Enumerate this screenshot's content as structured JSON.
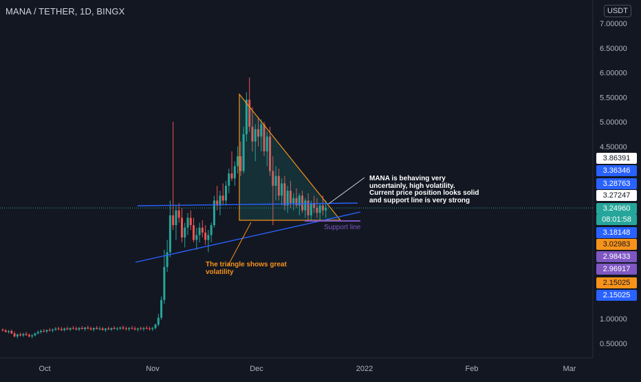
{
  "header": {
    "symbol": "MANA / TETHER, 1D, BINGX",
    "currency": "USDT"
  },
  "colors": {
    "background": "#131722",
    "up": "#26a69a",
    "down": "#ef5350",
    "triangle": "#f7931a",
    "trendline": "#2962ff",
    "support": "#7e57c2",
    "white_label": "#ffffff"
  },
  "annotations": {
    "main_lines": [
      "MANA is behaving very",
      "uncertainly, high volatility.",
      "Current price position looks solid",
      "and support line is very strong"
    ],
    "triangle_lines": [
      "The triangle shows great",
      "volatility"
    ],
    "support_label": "Support line"
  },
  "price_labels": [
    {
      "text": "3.86391",
      "bg": "#ffffff",
      "fg": "#131722"
    },
    {
      "text": "3.36346",
      "bg": "#2962ff",
      "fg": "#ffffff"
    },
    {
      "text": "3.28763",
      "bg": "#2962ff",
      "fg": "#ffffff"
    },
    {
      "text": "3.27247",
      "bg": "#ffffff",
      "fg": "#131722"
    },
    {
      "text": "3.24960",
      "bg": "#26a69a",
      "fg": "#ffffff"
    },
    {
      "text": "08:01:58",
      "bg": "#26a69a",
      "fg": "#ffffff"
    },
    {
      "text": "3.18148",
      "bg": "#2962ff",
      "fg": "#ffffff"
    },
    {
      "text": "3.02983",
      "bg": "#f7931a",
      "fg": "#131722"
    },
    {
      "text": "2.98433",
      "bg": "#7e57c2",
      "fg": "#ffffff"
    },
    {
      "text": "2.96917",
      "bg": "#7e57c2",
      "fg": "#ffffff"
    },
    {
      "text": "2.15025",
      "bg": "#f7931a",
      "fg": "#131722"
    },
    {
      "text": "2.15025",
      "bg": "#2962ff",
      "fg": "#ffffff"
    }
  ],
  "chart_data": {
    "type": "candlestick",
    "title": "MANA / TETHER, 1D, BINGX",
    "y_ticks": [
      "7.00000",
      "6.50000",
      "6.00000",
      "5.50000",
      "5.00000",
      "4.50000",
      "1.00000",
      "0.50000"
    ],
    "x_ticks": [
      "Oct",
      "Nov",
      "Dec",
      "2022",
      "Feb",
      "Mar"
    ],
    "current_price": 3.2496,
    "countdown": "08:01:58",
    "ohlc": [
      [
        0.78,
        0.8,
        0.74,
        0.76
      ],
      [
        0.76,
        0.79,
        0.72,
        0.73
      ],
      [
        0.73,
        0.77,
        0.7,
        0.75
      ],
      [
        0.75,
        0.78,
        0.69,
        0.7
      ],
      [
        0.7,
        0.74,
        0.62,
        0.64
      ],
      [
        0.64,
        0.7,
        0.6,
        0.68
      ],
      [
        0.68,
        0.72,
        0.64,
        0.66
      ],
      [
        0.66,
        0.71,
        0.63,
        0.69
      ],
      [
        0.69,
        0.73,
        0.65,
        0.67
      ],
      [
        0.67,
        0.7,
        0.62,
        0.64
      ],
      [
        0.64,
        0.69,
        0.6,
        0.66
      ],
      [
        0.66,
        0.72,
        0.64,
        0.7
      ],
      [
        0.7,
        0.76,
        0.68,
        0.73
      ],
      [
        0.73,
        0.78,
        0.7,
        0.75
      ],
      [
        0.75,
        0.79,
        0.72,
        0.74
      ],
      [
        0.74,
        0.78,
        0.71,
        0.77
      ],
      [
        0.77,
        0.81,
        0.74,
        0.76
      ],
      [
        0.76,
        0.8,
        0.72,
        0.78
      ],
      [
        0.78,
        0.83,
        0.75,
        0.8
      ],
      [
        0.8,
        0.84,
        0.76,
        0.79
      ],
      [
        0.79,
        0.83,
        0.75,
        0.77
      ],
      [
        0.77,
        0.82,
        0.74,
        0.8
      ],
      [
        0.8,
        0.84,
        0.77,
        0.78
      ],
      [
        0.78,
        0.82,
        0.75,
        0.81
      ],
      [
        0.81,
        0.85,
        0.78,
        0.8
      ],
      [
        0.8,
        0.84,
        0.76,
        0.78
      ],
      [
        0.78,
        0.83,
        0.75,
        0.81
      ],
      [
        0.81,
        0.85,
        0.78,
        0.79
      ],
      [
        0.79,
        0.83,
        0.75,
        0.82
      ],
      [
        0.82,
        0.86,
        0.78,
        0.8
      ],
      [
        0.8,
        0.84,
        0.76,
        0.78
      ],
      [
        0.78,
        0.82,
        0.74,
        0.81
      ],
      [
        0.81,
        0.85,
        0.78,
        0.79
      ],
      [
        0.79,
        0.84,
        0.76,
        0.8
      ],
      [
        0.8,
        0.83,
        0.76,
        0.77
      ],
      [
        0.77,
        0.81,
        0.73,
        0.8
      ],
      [
        0.8,
        0.84,
        0.77,
        0.78
      ],
      [
        0.78,
        0.82,
        0.75,
        0.81
      ],
      [
        0.81,
        0.85,
        0.78,
        0.79
      ],
      [
        0.79,
        0.83,
        0.76,
        0.8
      ],
      [
        0.8,
        0.84,
        0.77,
        0.82
      ],
      [
        0.82,
        0.86,
        0.78,
        0.8
      ],
      [
        0.8,
        0.84,
        0.76,
        0.79
      ],
      [
        0.79,
        0.83,
        0.75,
        0.81
      ],
      [
        0.81,
        0.85,
        0.78,
        0.8
      ],
      [
        0.8,
        0.84,
        0.76,
        0.78
      ],
      [
        0.78,
        0.82,
        0.74,
        0.8
      ],
      [
        0.8,
        0.84,
        0.77,
        0.79
      ],
      [
        0.79,
        0.83,
        0.75,
        0.81
      ],
      [
        0.81,
        0.85,
        0.78,
        0.8
      ],
      [
        0.8,
        0.84,
        0.76,
        0.79
      ],
      [
        0.79,
        0.83,
        0.75,
        0.81
      ],
      [
        0.81,
        0.9,
        0.78,
        0.88
      ],
      [
        0.88,
        1.1,
        0.84,
        1.02
      ],
      [
        1.02,
        1.45,
        0.98,
        1.38
      ],
      [
        1.38,
        2.4,
        1.3,
        2.05
      ],
      [
        2.05,
        2.6,
        1.95,
        2.35
      ],
      [
        2.35,
        3.4,
        2.25,
        3.1
      ],
      [
        3.1,
        5.0,
        2.8,
        2.9
      ],
      [
        2.9,
        3.3,
        2.6,
        3.2
      ],
      [
        3.2,
        3.35,
        2.95,
        3.05
      ],
      [
        3.05,
        3.25,
        2.55,
        2.65
      ],
      [
        2.65,
        2.95,
        2.45,
        2.85
      ],
      [
        2.85,
        3.15,
        2.7,
        3.05
      ],
      [
        3.05,
        3.2,
        2.8,
        2.9
      ],
      [
        2.9,
        3.05,
        2.55,
        2.6
      ],
      [
        2.6,
        2.85,
        2.4,
        2.7
      ],
      [
        2.7,
        2.95,
        2.55,
        2.85
      ],
      [
        2.85,
        3.0,
        2.65,
        2.75
      ],
      [
        2.75,
        2.9,
        2.5,
        2.6
      ],
      [
        2.6,
        2.8,
        2.35,
        2.7
      ],
      [
        2.7,
        2.95,
        2.55,
        2.9
      ],
      [
        2.9,
        3.5,
        2.85,
        3.4
      ],
      [
        3.4,
        3.7,
        3.2,
        3.3
      ],
      [
        3.3,
        3.6,
        3.1,
        3.5
      ],
      [
        3.5,
        3.75,
        3.3,
        3.4
      ],
      [
        3.4,
        3.8,
        3.3,
        3.7
      ],
      [
        3.7,
        4.05,
        3.55,
        3.95
      ],
      [
        3.95,
        4.4,
        3.8,
        3.85
      ],
      [
        3.85,
        4.2,
        3.7,
        4.1
      ],
      [
        4.1,
        4.5,
        3.95,
        4.3
      ],
      [
        4.3,
        4.6,
        3.9,
        4.0
      ],
      [
        4.0,
        4.9,
        3.95,
        4.75
      ],
      [
        4.75,
        5.6,
        4.6,
        5.45
      ],
      [
        5.45,
        5.9,
        4.8,
        4.9
      ],
      [
        4.9,
        5.3,
        4.4,
        4.6
      ],
      [
        4.6,
        4.95,
        4.2,
        4.85
      ],
      [
        4.85,
        5.1,
        4.5,
        4.7
      ],
      [
        4.7,
        5.05,
        4.4,
        4.95
      ],
      [
        4.95,
        5.0,
        4.3,
        4.4
      ],
      [
        4.4,
        4.8,
        4.1,
        4.7
      ],
      [
        4.7,
        4.9,
        3.9,
        4.0
      ],
      [
        4.0,
        4.3,
        2.9,
        3.7
      ],
      [
        3.7,
        4.1,
        3.4,
        3.9
      ],
      [
        3.9,
        4.05,
        3.4,
        3.5
      ],
      [
        3.5,
        3.85,
        3.3,
        3.75
      ],
      [
        3.75,
        3.9,
        3.2,
        3.3
      ],
      [
        3.3,
        3.7,
        3.15,
        3.6
      ],
      [
        3.6,
        3.8,
        3.25,
        3.35
      ],
      [
        3.35,
        3.55,
        3.2,
        3.45
      ],
      [
        3.45,
        3.65,
        3.25,
        3.3
      ],
      [
        3.3,
        3.55,
        3.1,
        3.5
      ],
      [
        3.5,
        3.6,
        3.15,
        3.2
      ],
      [
        3.2,
        3.45,
        3.05,
        3.4
      ],
      [
        3.4,
        3.55,
        3.0,
        3.1
      ],
      [
        3.1,
        3.4,
        3.0,
        3.35
      ],
      [
        3.35,
        3.5,
        3.15,
        3.25
      ],
      [
        3.25,
        3.45,
        3.05,
        3.15
      ],
      [
        3.15,
        3.35,
        2.98,
        3.3
      ],
      [
        3.3,
        3.5,
        3.1,
        3.2
      ],
      [
        3.2,
        3.4,
        3.05,
        3.25
      ]
    ]
  }
}
